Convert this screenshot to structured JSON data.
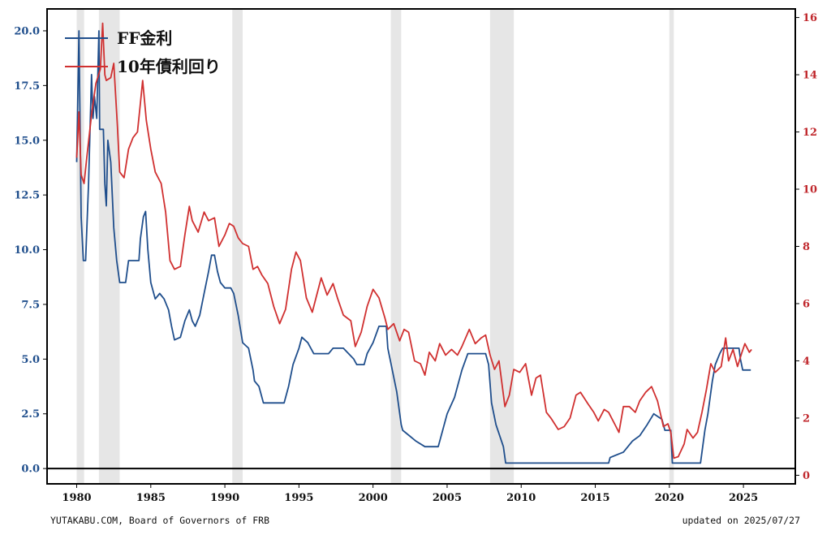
{
  "chart_data": {
    "type": "line",
    "title": "",
    "xlabel": "",
    "ylabel_left": "",
    "ylabel_right": "",
    "xlim": [
      1978.0,
      2028.5
    ],
    "ylim_left": [
      -0.7,
      21.0
    ],
    "ylim_right": [
      -0.3,
      16.3
    ],
    "x_ticks": [
      1980,
      1985,
      1990,
      1995,
      2000,
      2005,
      2010,
      2015,
      2020,
      2025
    ],
    "y_left_ticks": [
      "0.0",
      "2.5",
      "5.0",
      "7.5",
      "10.0",
      "12.5",
      "15.0",
      "17.5",
      "20.0"
    ],
    "y_right_ticks": [
      "0",
      "2",
      "4",
      "6",
      "8",
      "10",
      "12",
      "14",
      "16"
    ],
    "legend_position": "top-left",
    "recessions": [
      [
        1980.0,
        1980.5
      ],
      [
        1981.5,
        1982.9
      ],
      [
        1990.5,
        1991.2
      ],
      [
        2001.2,
        2001.9
      ],
      [
        2007.9,
        2009.5
      ],
      [
        2020.0,
        2020.3
      ]
    ],
    "series": [
      {
        "name": "FF金利",
        "axis": "left",
        "color": "#1f4e8c",
        "points": [
          [
            1980.0,
            14.0
          ],
          [
            1980.15,
            20.0
          ],
          [
            1980.3,
            11.5
          ],
          [
            1980.45,
            9.5
          ],
          [
            1980.6,
            9.5
          ],
          [
            1980.8,
            13.0
          ],
          [
            1981.0,
            18.0
          ],
          [
            1981.1,
            16.0
          ],
          [
            1981.2,
            17.0
          ],
          [
            1981.35,
            16.0
          ],
          [
            1981.5,
            20.0
          ],
          [
            1981.55,
            15.5
          ],
          [
            1981.8,
            15.5
          ],
          [
            1981.9,
            13.0
          ],
          [
            1982.0,
            12.0
          ],
          [
            1982.1,
            15.0
          ],
          [
            1982.3,
            14.0
          ],
          [
            1982.5,
            11.0
          ],
          [
            1982.7,
            9.5
          ],
          [
            1982.9,
            8.5
          ],
          [
            1983.3,
            8.5
          ],
          [
            1983.5,
            9.5
          ],
          [
            1984.2,
            9.5
          ],
          [
            1984.3,
            10.5
          ],
          [
            1984.5,
            11.5
          ],
          [
            1984.65,
            11.75
          ],
          [
            1984.8,
            10.0
          ],
          [
            1985.0,
            8.5
          ],
          [
            1985.3,
            7.75
          ],
          [
            1985.6,
            8.0
          ],
          [
            1985.9,
            7.75
          ],
          [
            1986.2,
            7.25
          ],
          [
            1986.4,
            6.5
          ],
          [
            1986.6,
            5.875
          ],
          [
            1987.0,
            6.0
          ],
          [
            1987.3,
            6.75
          ],
          [
            1987.6,
            7.25
          ],
          [
            1987.8,
            6.75
          ],
          [
            1988.0,
            6.5
          ],
          [
            1988.3,
            7.0
          ],
          [
            1988.6,
            8.0
          ],
          [
            1988.9,
            9.0
          ],
          [
            1989.1,
            9.75
          ],
          [
            1989.3,
            9.75
          ],
          [
            1989.5,
            9.0
          ],
          [
            1989.7,
            8.5
          ],
          [
            1990.0,
            8.25
          ],
          [
            1990.4,
            8.25
          ],
          [
            1990.6,
            8.0
          ],
          [
            1990.9,
            7.0
          ],
          [
            1991.2,
            5.75
          ],
          [
            1991.6,
            5.5
          ],
          [
            1991.9,
            4.5
          ],
          [
            1992.0,
            4.0
          ],
          [
            1992.3,
            3.75
          ],
          [
            1992.6,
            3.0
          ],
          [
            1993.0,
            3.0
          ],
          [
            1994.0,
            3.0
          ],
          [
            1994.3,
            3.75
          ],
          [
            1994.6,
            4.75
          ],
          [
            1995.0,
            5.5
          ],
          [
            1995.2,
            6.0
          ],
          [
            1995.6,
            5.75
          ],
          [
            1996.0,
            5.25
          ],
          [
            1997.0,
            5.25
          ],
          [
            1997.3,
            5.5
          ],
          [
            1998.0,
            5.5
          ],
          [
            1998.7,
            5.0
          ],
          [
            1998.9,
            4.75
          ],
          [
            1999.4,
            4.75
          ],
          [
            1999.6,
            5.25
          ],
          [
            2000.0,
            5.75
          ],
          [
            2000.4,
            6.5
          ],
          [
            2000.9,
            6.5
          ],
          [
            2001.0,
            5.5
          ],
          [
            2001.3,
            4.5
          ],
          [
            2001.6,
            3.5
          ],
          [
            2001.9,
            2.0
          ],
          [
            2002.0,
            1.75
          ],
          [
            2002.9,
            1.25
          ],
          [
            2003.5,
            1.0
          ],
          [
            2004.4,
            1.0
          ],
          [
            2004.7,
            1.75
          ],
          [
            2005.0,
            2.5
          ],
          [
            2005.5,
            3.25
          ],
          [
            2006.0,
            4.5
          ],
          [
            2006.4,
            5.25
          ],
          [
            2007.6,
            5.25
          ],
          [
            2007.8,
            4.75
          ],
          [
            2008.0,
            3.0
          ],
          [
            2008.3,
            2.0
          ],
          [
            2008.8,
            1.0
          ],
          [
            2008.95,
            0.25
          ],
          [
            2015.9,
            0.25
          ],
          [
            2016.0,
            0.5
          ],
          [
            2016.9,
            0.75
          ],
          [
            2017.5,
            1.25
          ],
          [
            2018.0,
            1.5
          ],
          [
            2018.5,
            2.0
          ],
          [
            2018.95,
            2.5
          ],
          [
            2019.5,
            2.25
          ],
          [
            2019.7,
            1.75
          ],
          [
            2020.1,
            1.75
          ],
          [
            2020.2,
            0.25
          ],
          [
            2022.1,
            0.25
          ],
          [
            2022.4,
            1.75
          ],
          [
            2022.6,
            2.5
          ],
          [
            2022.9,
            4.0
          ],
          [
            2023.1,
            4.75
          ],
          [
            2023.4,
            5.25
          ],
          [
            2023.6,
            5.5
          ],
          [
            2024.7,
            5.5
          ],
          [
            2024.8,
            5.0
          ],
          [
            2024.95,
            4.5
          ],
          [
            2025.5,
            4.5
          ]
        ]
      },
      {
        "name": "10年債利回り",
        "axis": "right",
        "color": "#d03030",
        "points": [
          [
            1980.0,
            11.1
          ],
          [
            1980.15,
            12.7
          ],
          [
            1980.3,
            10.5
          ],
          [
            1980.5,
            10.2
          ],
          [
            1980.7,
            11.2
          ],
          [
            1981.0,
            12.6
          ],
          [
            1981.3,
            13.7
          ],
          [
            1981.6,
            14.2
          ],
          [
            1981.75,
            15.8
          ],
          [
            1981.9,
            14.0
          ],
          [
            1982.0,
            13.8
          ],
          [
            1982.3,
            13.9
          ],
          [
            1982.5,
            14.4
          ],
          [
            1982.75,
            12.2
          ],
          [
            1982.9,
            10.6
          ],
          [
            1983.2,
            10.4
          ],
          [
            1983.5,
            11.4
          ],
          [
            1983.8,
            11.8
          ],
          [
            1984.1,
            12.0
          ],
          [
            1984.3,
            13.0
          ],
          [
            1984.45,
            13.8
          ],
          [
            1984.7,
            12.4
          ],
          [
            1985.0,
            11.4
          ],
          [
            1985.3,
            10.6
          ],
          [
            1985.7,
            10.2
          ],
          [
            1986.0,
            9.2
          ],
          [
            1986.3,
            7.5
          ],
          [
            1986.6,
            7.2
          ],
          [
            1987.0,
            7.3
          ],
          [
            1987.3,
            8.4
          ],
          [
            1987.6,
            9.4
          ],
          [
            1987.8,
            8.9
          ],
          [
            1988.2,
            8.5
          ],
          [
            1988.6,
            9.2
          ],
          [
            1988.9,
            8.9
          ],
          [
            1989.3,
            9.0
          ],
          [
            1989.6,
            8.0
          ],
          [
            1990.0,
            8.4
          ],
          [
            1990.3,
            8.8
          ],
          [
            1990.6,
            8.7
          ],
          [
            1990.9,
            8.3
          ],
          [
            1991.2,
            8.1
          ],
          [
            1991.6,
            8.0
          ],
          [
            1991.9,
            7.2
          ],
          [
            1992.2,
            7.3
          ],
          [
            1992.5,
            7.0
          ],
          [
            1992.9,
            6.7
          ],
          [
            1993.3,
            5.9
          ],
          [
            1993.7,
            5.3
          ],
          [
            1994.1,
            5.8
          ],
          [
            1994.5,
            7.2
          ],
          [
            1994.8,
            7.8
          ],
          [
            1995.1,
            7.5
          ],
          [
            1995.5,
            6.2
          ],
          [
            1995.9,
            5.7
          ],
          [
            1996.2,
            6.3
          ],
          [
            1996.5,
            6.9
          ],
          [
            1996.9,
            6.3
          ],
          [
            1997.3,
            6.7
          ],
          [
            1997.6,
            6.2
          ],
          [
            1998.0,
            5.6
          ],
          [
            1998.5,
            5.4
          ],
          [
            1998.8,
            4.5
          ],
          [
            1999.2,
            5.0
          ],
          [
            1999.6,
            5.9
          ],
          [
            2000.0,
            6.5
          ],
          [
            2000.4,
            6.2
          ],
          [
            2000.8,
            5.5
          ],
          [
            2001.0,
            5.1
          ],
          [
            2001.4,
            5.3
          ],
          [
            2001.8,
            4.7
          ],
          [
            2002.1,
            5.1
          ],
          [
            2002.4,
            5.0
          ],
          [
            2002.8,
            4.0
          ],
          [
            2003.2,
            3.9
          ],
          [
            2003.5,
            3.5
          ],
          [
            2003.8,
            4.3
          ],
          [
            2004.2,
            4.0
          ],
          [
            2004.5,
            4.6
          ],
          [
            2004.9,
            4.2
          ],
          [
            2005.3,
            4.4
          ],
          [
            2005.7,
            4.2
          ],
          [
            2006.0,
            4.5
          ],
          [
            2006.5,
            5.1
          ],
          [
            2006.9,
            4.6
          ],
          [
            2007.3,
            4.8
          ],
          [
            2007.6,
            4.9
          ],
          [
            2007.9,
            4.2
          ],
          [
            2008.2,
            3.7
          ],
          [
            2008.5,
            4.0
          ],
          [
            2008.9,
            2.4
          ],
          [
            2009.2,
            2.8
          ],
          [
            2009.5,
            3.7
          ],
          [
            2009.9,
            3.6
          ],
          [
            2010.3,
            3.9
          ],
          [
            2010.7,
            2.8
          ],
          [
            2011.0,
            3.4
          ],
          [
            2011.3,
            3.5
          ],
          [
            2011.7,
            2.2
          ],
          [
            2012.0,
            2.0
          ],
          [
            2012.5,
            1.6
          ],
          [
            2012.9,
            1.7
          ],
          [
            2013.3,
            2.0
          ],
          [
            2013.7,
            2.8
          ],
          [
            2014.0,
            2.9
          ],
          [
            2014.5,
            2.5
          ],
          [
            2014.9,
            2.2
          ],
          [
            2015.2,
            1.9
          ],
          [
            2015.6,
            2.3
          ],
          [
            2015.9,
            2.2
          ],
          [
            2016.4,
            1.7
          ],
          [
            2016.6,
            1.5
          ],
          [
            2016.9,
            2.4
          ],
          [
            2017.3,
            2.4
          ],
          [
            2017.7,
            2.2
          ],
          [
            2018.0,
            2.6
          ],
          [
            2018.4,
            2.9
          ],
          [
            2018.8,
            3.1
          ],
          [
            2019.2,
            2.6
          ],
          [
            2019.6,
            1.7
          ],
          [
            2019.9,
            1.8
          ],
          [
            2020.1,
            1.5
          ],
          [
            2020.3,
            0.6
          ],
          [
            2020.6,
            0.65
          ],
          [
            2021.0,
            1.1
          ],
          [
            2021.2,
            1.6
          ],
          [
            2021.6,
            1.3
          ],
          [
            2021.9,
            1.5
          ],
          [
            2022.2,
            2.2
          ],
          [
            2022.5,
            3.0
          ],
          [
            2022.8,
            3.9
          ],
          [
            2023.1,
            3.6
          ],
          [
            2023.5,
            3.8
          ],
          [
            2023.8,
            4.8
          ],
          [
            2024.0,
            4.0
          ],
          [
            2024.3,
            4.4
          ],
          [
            2024.6,
            3.8
          ],
          [
            2024.9,
            4.3
          ],
          [
            2025.1,
            4.6
          ],
          [
            2025.4,
            4.3
          ],
          [
            2025.55,
            4.4
          ]
        ]
      }
    ]
  },
  "footer": {
    "source": "YUTAKABU.COM, Board of Governors of FRB",
    "updated": "updated on 2025/07/27"
  }
}
